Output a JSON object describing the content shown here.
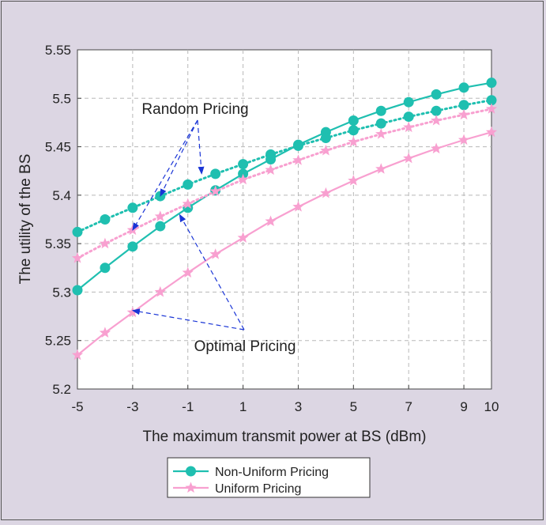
{
  "chart_data": {
    "type": "line",
    "title": "",
    "xlabel": "The maximum transmit power at BS (dBm)",
    "ylabel": "The utility of the BS",
    "xlim": [
      -5,
      10
    ],
    "ylim": [
      5.2,
      5.55
    ],
    "xticks": [
      -5,
      -3,
      -1,
      1,
      3,
      5,
      7,
      9,
      10
    ],
    "yticks": [
      5.2,
      5.25,
      5.3,
      5.35,
      5.4,
      5.45,
      5.5,
      5.55
    ],
    "xtick_labels": [
      "-5",
      "-3",
      "-1",
      "1",
      "3",
      "5",
      "7",
      "9",
      "10"
    ],
    "ytick_labels": [
      "5.2",
      "5.25",
      "5.3",
      "5.35",
      "5.4",
      "5.45",
      "5.5",
      "5.55"
    ],
    "grid": true,
    "legend_position": "bottom-outside",
    "x": [
      -5,
      -4,
      -3,
      -2,
      -1,
      0,
      1,
      2,
      3,
      4,
      5,
      6,
      7,
      8,
      9,
      10
    ],
    "series": [
      {
        "name": "Non-Uniform Pricing",
        "legend": true,
        "color": "#1fbfb0",
        "marker": "circle",
        "dash": "solid",
        "values": [
          5.302,
          5.325,
          5.347,
          5.368,
          5.387,
          5.405,
          5.422,
          5.437,
          5.452,
          5.465,
          5.477,
          5.487,
          5.496,
          5.504,
          5.511,
          5.516
        ]
      },
      {
        "name": "",
        "legend": false,
        "color": "#1fbfb0",
        "marker": "circle",
        "dash": "dotted",
        "values": [
          5.362,
          5.375,
          5.387,
          5.399,
          5.411,
          5.422,
          5.432,
          5.442,
          5.451,
          5.459,
          5.467,
          5.474,
          5.481,
          5.487,
          5.493,
          5.498
        ]
      },
      {
        "name": "Uniform Pricing",
        "legend": true,
        "color": "#f8a0d0",
        "marker": "star",
        "dash": "solid",
        "values": [
          5.235,
          5.258,
          5.279,
          5.3,
          5.32,
          5.339,
          5.356,
          5.373,
          5.388,
          5.402,
          5.415,
          5.427,
          5.438,
          5.448,
          5.457,
          5.465
        ]
      },
      {
        "name": "",
        "legend": false,
        "color": "#f8a0d0",
        "marker": "star",
        "dash": "dotted",
        "values": [
          5.335,
          5.35,
          5.364,
          5.378,
          5.391,
          5.404,
          5.416,
          5.426,
          5.436,
          5.446,
          5.455,
          5.463,
          5.47,
          5.477,
          5.483,
          5.489
        ]
      }
    ],
    "annotations": [
      {
        "text": "Random Pricing",
        "arrow_targets": [
          [
            -3,
            5.364
          ],
          [
            -2,
            5.399
          ],
          [
            -0.5,
            5.422
          ]
        ]
      },
      {
        "text": "Optimal Pricing",
        "arrow_targets": [
          [
            -3,
            5.281
          ],
          [
            -1.3,
            5.38
          ]
        ]
      }
    ]
  }
}
